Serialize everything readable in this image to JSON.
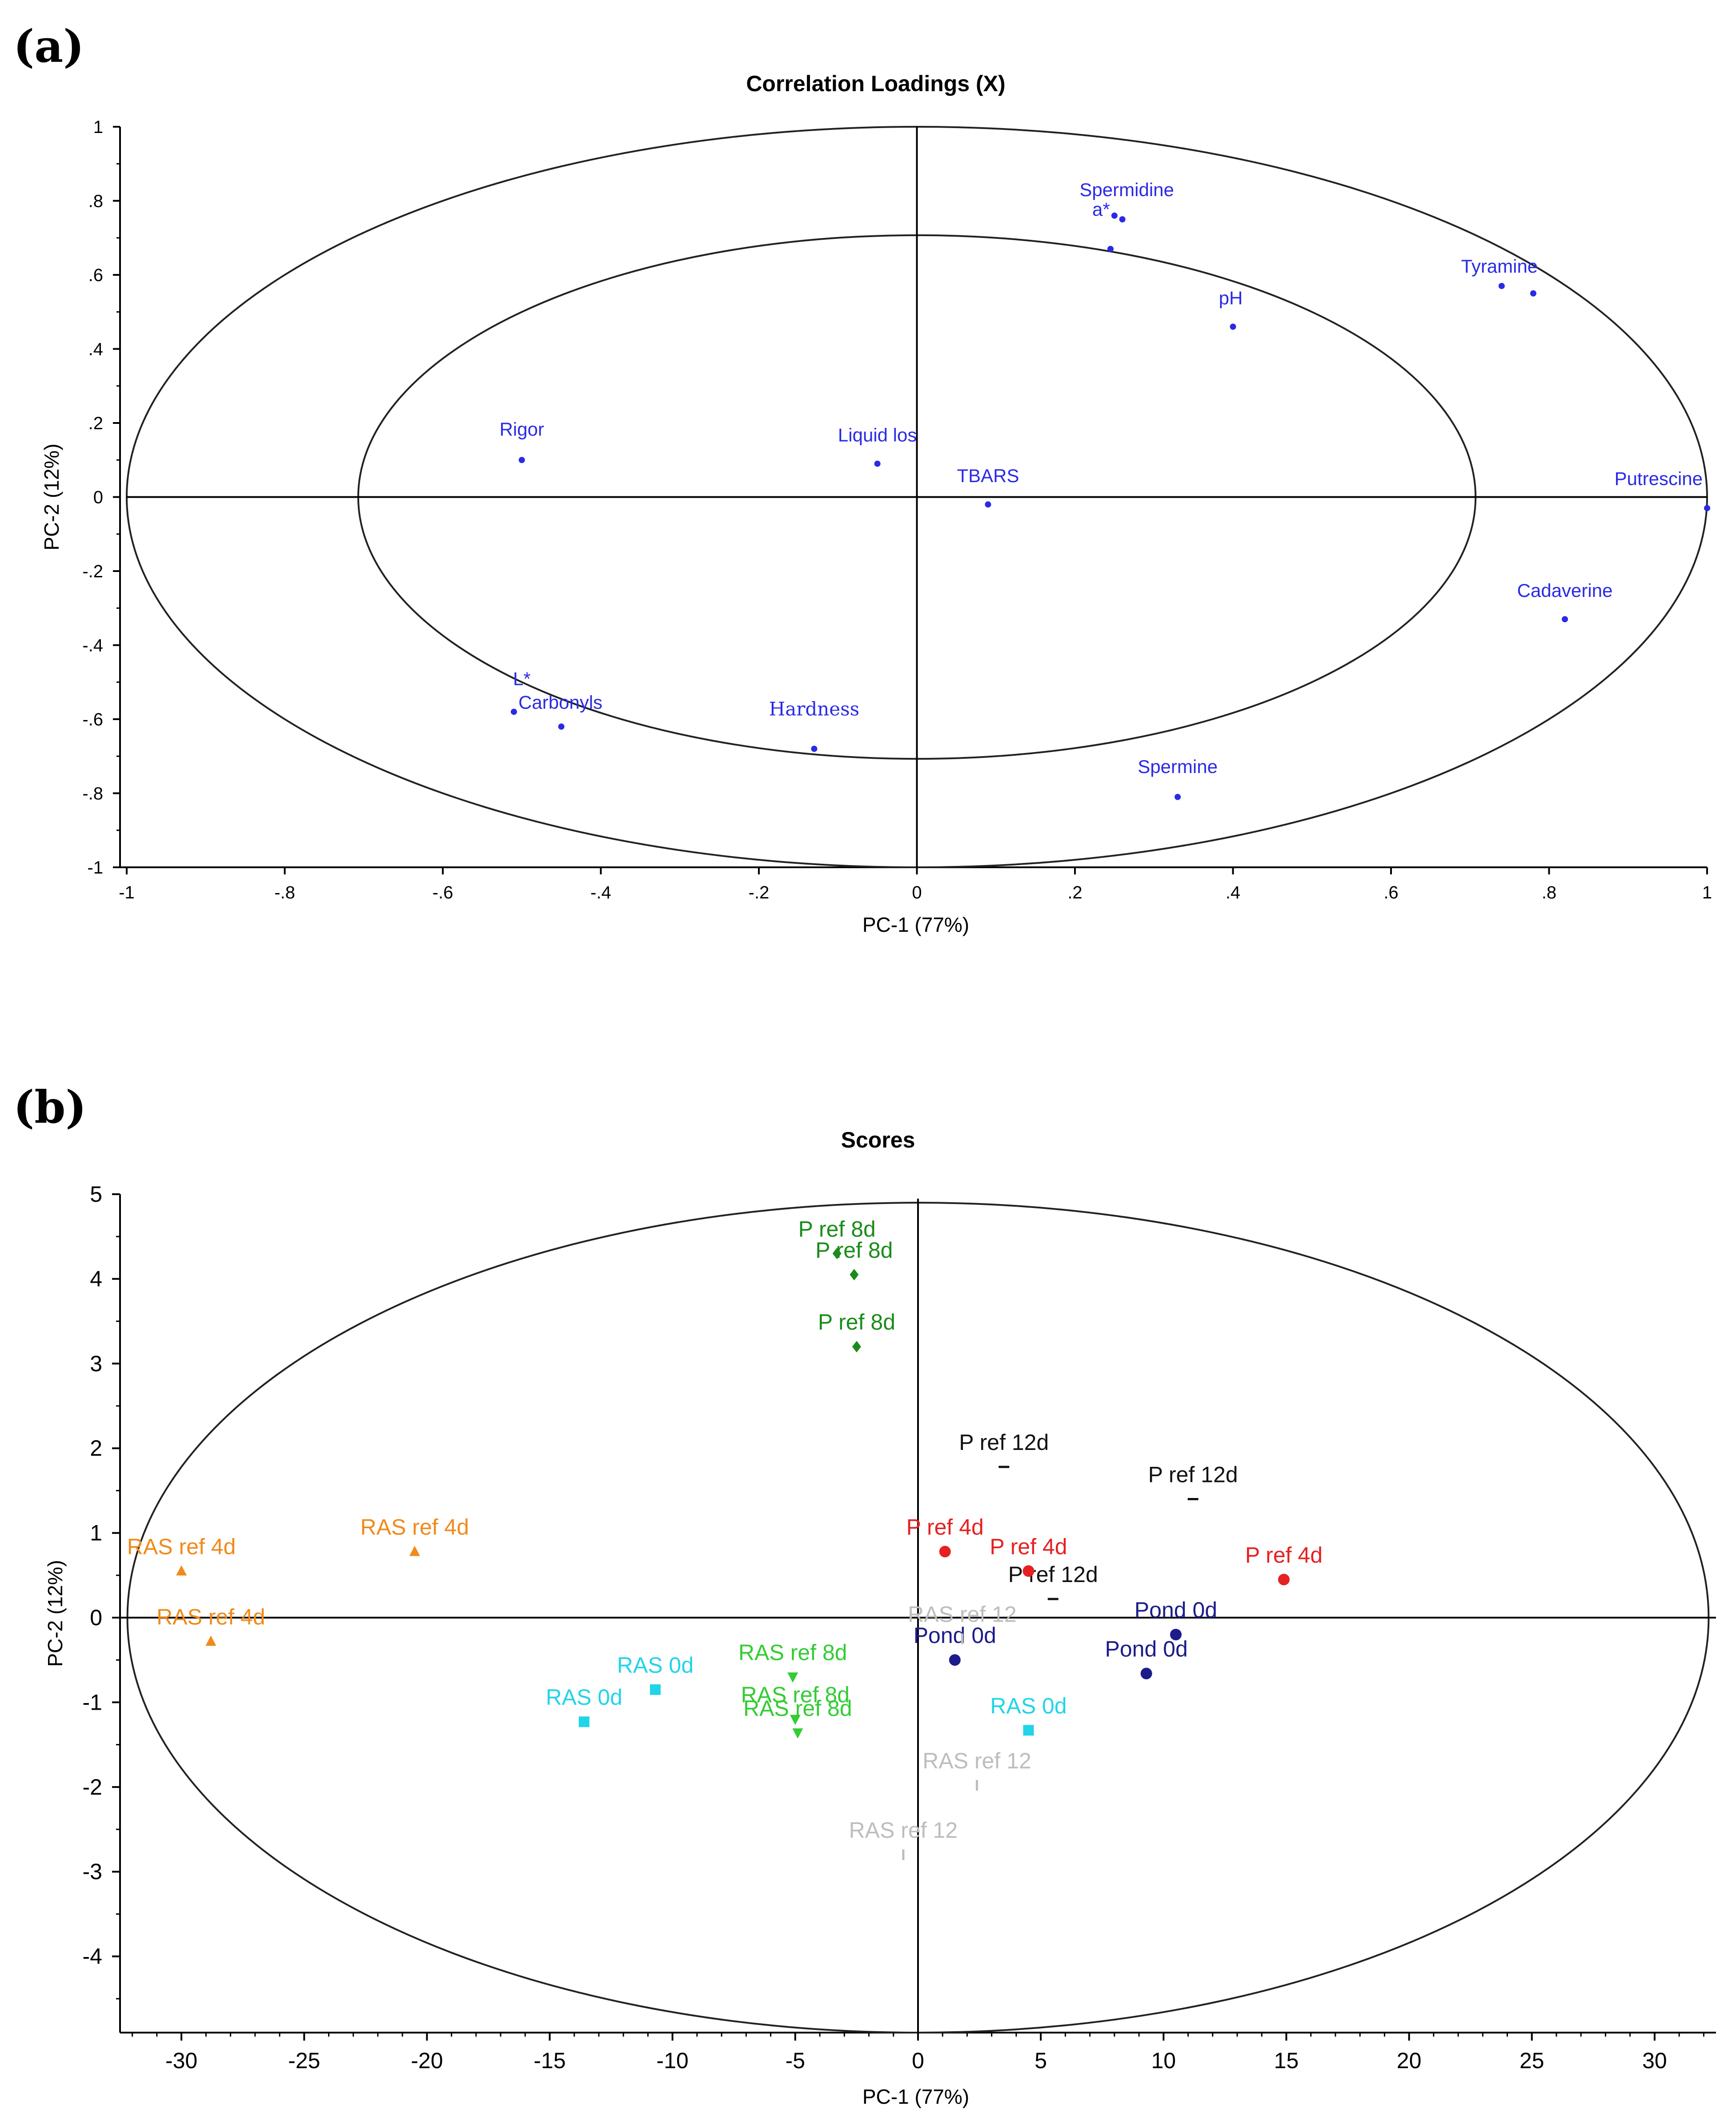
{
  "chart_data": [
    {
      "panel_label": "(a)",
      "type": "scatter",
      "title": "Correlation Loadings (X)",
      "xlabel": "PC-1 (77%)",
      "ylabel": "PC-2 (12%)",
      "xlim": [
        -1,
        1
      ],
      "ylim": [
        -1,
        1
      ],
      "xticks": [
        -1,
        -0.8,
        -0.6,
        -0.4,
        -0.2,
        0,
        0.2,
        0.4,
        0.6,
        0.8,
        1
      ],
      "yticks": [
        -1,
        -0.8,
        -0.6,
        -0.4,
        -0.2,
        0,
        0.2,
        0.4,
        0.6,
        0.8,
        1
      ],
      "ellipses": [
        1.0,
        0.707
      ],
      "marker_color": "#2a2ae6",
      "points": [
        {
          "label": "Spermidine",
          "x": 0.26,
          "y": 0.75
        },
        {
          "label": "a*",
          "x": 0.25,
          "y": 0.76
        },
        {
          "label": "",
          "x": 0.245,
          "y": 0.67
        },
        {
          "label": "Tyramine",
          "x": 0.74,
          "y": 0.57
        },
        {
          "label": "",
          "x": 0.78,
          "y": 0.55
        },
        {
          "label": "pH",
          "x": 0.4,
          "y": 0.46
        },
        {
          "label": "Rigor",
          "x": -0.5,
          "y": 0.1
        },
        {
          "label": "Liquid los",
          "x": -0.05,
          "y": 0.09
        },
        {
          "label": "TBARS",
          "x": 0.09,
          "y": -0.02
        },
        {
          "label": "Putrescine",
          "x": 1.0,
          "y": -0.03
        },
        {
          "label": "Cadaverine",
          "x": 0.82,
          "y": -0.33
        },
        {
          "label": "L*",
          "x": -0.51,
          "y": -0.58
        },
        {
          "label": "Carbonyls",
          "x": -0.45,
          "y": -0.62
        },
        {
          "label": "Hardness",
          "x": -0.13,
          "y": -0.68
        },
        {
          "label": "Spermine",
          "x": 0.33,
          "y": -0.81
        }
      ]
    },
    {
      "panel_label": "(b)",
      "type": "scatter",
      "title": "Scores",
      "xlabel": "PC-1 (77%)",
      "ylabel": "PC-2 (12%)",
      "xlim": [
        -32.5,
        32.5
      ],
      "ylim": [
        -4.9,
        5.0
      ],
      "xticks": [
        -30,
        -25,
        -20,
        -15,
        -10,
        -5,
        0,
        5,
        10,
        15,
        20,
        25,
        30
      ],
      "yticks": [
        -4,
        -3,
        -2,
        -1,
        0,
        1,
        2,
        3,
        4,
        5
      ],
      "ellipse": {
        "rx": 32.2,
        "ry": 4.9
      },
      "series": [
        {
          "name": "P ref 8d",
          "color": "#1a8c1a",
          "marker": "diamond",
          "points": [
            {
              "label": "P ref 8d",
              "x": -3.3,
              "y": 4.3
            },
            {
              "label": "P ref 8d",
              "x": -2.6,
              "y": 4.05
            },
            {
              "label": "P ref 8d",
              "x": -2.5,
              "y": 3.2
            }
          ]
        },
        {
          "name": "P ref 12d",
          "color": "#111111",
          "marker": "dash",
          "points": [
            {
              "label": "P ref 12d",
              "x": 3.5,
              "y": 1.78
            },
            {
              "label": "P ref 12d",
              "x": 11.2,
              "y": 1.4
            },
            {
              "label": "P ref 12d",
              "x": 5.5,
              "y": 0.22
            }
          ]
        },
        {
          "name": "P ref 4d",
          "color": "#e52121",
          "marker": "circle",
          "points": [
            {
              "label": "P ref 4d",
              "x": 1.1,
              "y": 0.78
            },
            {
              "label": "P ref 4d",
              "x": 4.5,
              "y": 0.55
            },
            {
              "label": "P ref 4d",
              "x": 14.9,
              "y": 0.45
            }
          ]
        },
        {
          "name": "RAS ref 4d",
          "color": "#f08a1a",
          "marker": "triangle",
          "points": [
            {
              "label": "RAS ref 4d",
              "x": -20.5,
              "y": 0.78
            },
            {
              "label": "RAS ref 4d",
              "x": -30.0,
              "y": 0.55
            },
            {
              "label": "RAS ref 4d",
              "x": -28.8,
              "y": -0.28
            }
          ]
        },
        {
          "name": "Pond 0d",
          "color": "#1c1c8a",
          "marker": "circle",
          "points": [
            {
              "label": "Pond 0d",
              "x": 10.5,
              "y": -0.2
            },
            {
              "label": "Pond 0d",
              "x": 9.3,
              "y": -0.66
            },
            {
              "label": "Pond 0d",
              "x": 1.5,
              "y": -0.5
            }
          ]
        },
        {
          "name": "RAS 0d",
          "color": "#22d4e8",
          "marker": "square",
          "points": [
            {
              "label": "RAS 0d",
              "x": -10.7,
              "y": -0.85
            },
            {
              "label": "RAS 0d",
              "x": -13.6,
              "y": -1.23
            },
            {
              "label": "RAS 0d",
              "x": 4.5,
              "y": -1.33
            }
          ]
        },
        {
          "name": "RAS ref 8d",
          "color": "#33cc33",
          "marker": "triangle-down",
          "points": [
            {
              "label": "RAS ref 8d",
              "x": -5.1,
              "y": -0.7
            },
            {
              "label": "RAS ref 8d",
              "x": -5.0,
              "y": -1.2
            },
            {
              "label": "RAS ref 8d",
              "x": -4.9,
              "y": -1.36
            }
          ]
        },
        {
          "name": "RAS ref 12",
          "color": "#bdbdbd",
          "marker": "tick",
          "points": [
            {
              "label": "RAS ref 12",
              "x": 1.8,
              "y": -0.25
            },
            {
              "label": "RAS ref 12",
              "x": 2.4,
              "y": -1.98
            },
            {
              "label": "RAS ref 12",
              "x": -0.6,
              "y": -2.8
            }
          ]
        }
      ]
    }
  ]
}
